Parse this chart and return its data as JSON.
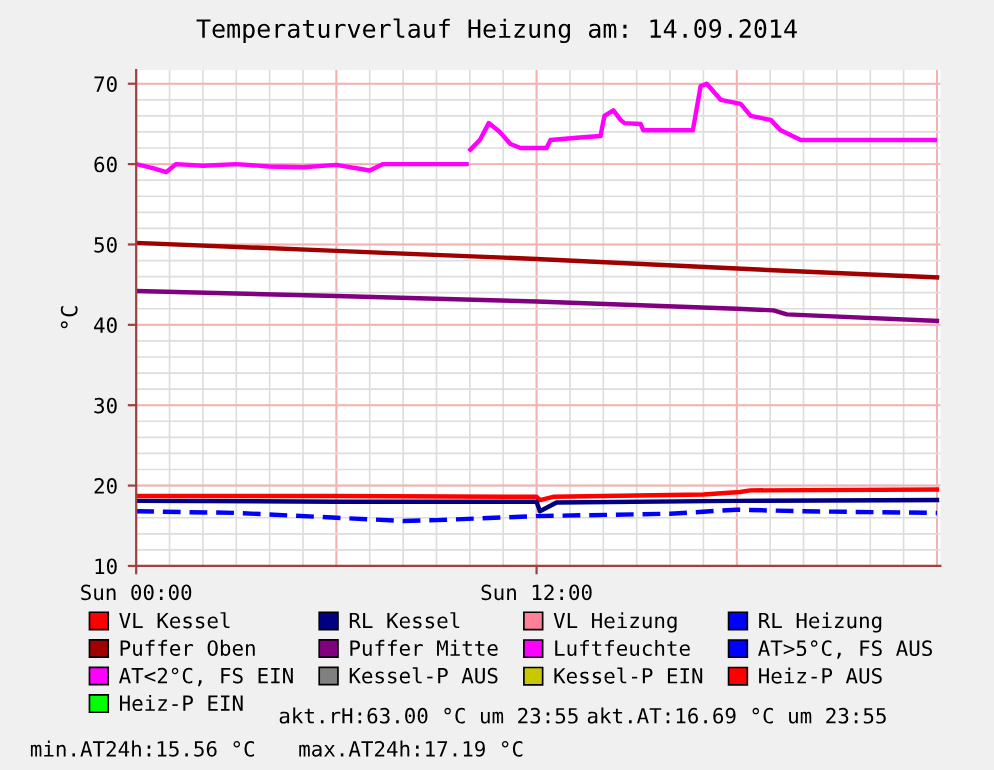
{
  "chart_data": {
    "type": "line",
    "title": "Temperaturverlauf Heizung am: 14.09.2014",
    "ylabel": "°C",
    "xlim": [
      "2014-09-14T00:00",
      "2014-09-15T00:06"
    ],
    "xticks": [
      {
        "value": "2014-09-14T00:00",
        "label": "Sun 00:00"
      },
      {
        "value": "2014-09-14T12:00",
        "label": "Sun 12:00"
      }
    ],
    "ylim": [
      10,
      71.7
    ],
    "yticks": [
      10,
      20,
      30,
      40,
      50,
      60,
      70
    ],
    "grid": true,
    "legend": "bottom",
    "line_style": "solid",
    "marker": "none",
    "series": [
      {
        "name": "VL Kessel",
        "color": "#ff0000",
        "x": [
          "2014-09-14T00:00",
          "2014-09-14T06:00",
          "2014-09-14T12:00",
          "2014-09-14T12:06",
          "2014-09-14T12:30",
          "2014-09-14T17:00",
          "2014-09-14T18:06",
          "2014-09-14T18:24",
          "2014-09-15T00:00"
        ],
        "values": [
          18.7,
          18.7,
          18.6,
          18.2,
          18.6,
          18.9,
          19.2,
          19.4,
          19.5
        ]
      },
      {
        "name": "RL Kessel",
        "color": "#000080",
        "x": [
          "2014-09-14T00:00",
          "2014-09-14T06:00",
          "2014-09-14T12:00",
          "2014-09-14T12:06",
          "2014-09-14T12:36",
          "2014-09-14T18:00",
          "2014-09-15T00:00"
        ],
        "values": [
          18.1,
          18.0,
          18.0,
          16.8,
          17.9,
          18.1,
          18.2
        ]
      },
      {
        "name": "VL Heizung",
        "color": "#ff8099"
      },
      {
        "name": "RL Heizung",
        "color": "#0000ff"
      },
      {
        "name": "Puffer Oben",
        "color": "#a00000",
        "x": [
          "2014-09-14T00:00",
          "2014-09-14T06:00",
          "2014-09-14T12:00",
          "2014-09-14T18:00",
          "2014-09-15T00:00"
        ],
        "values": [
          50.2,
          49.2,
          48.2,
          47.0,
          45.9
        ]
      },
      {
        "name": "Puffer Mitte",
        "color": "#800080",
        "x": [
          "2014-09-14T00:00",
          "2014-09-14T06:00",
          "2014-09-14T12:00",
          "2014-09-14T18:00",
          "2014-09-14T19:06",
          "2014-09-14T19:30",
          "2014-09-15T00:00"
        ],
        "values": [
          44.2,
          43.6,
          42.9,
          42.0,
          41.8,
          41.3,
          40.5
        ]
      },
      {
        "name": "Luftfeuchte",
        "color": "#ff00ff",
        "x": [
          "2014-09-14T00:00",
          "2014-09-14T00:30",
          "2014-09-14T00:54",
          "2014-09-14T01:12",
          "2014-09-14T02:00",
          "2014-09-14T03:00",
          "2014-09-14T04:00",
          "2014-09-14T05:00",
          "2014-09-14T06:00",
          "2014-09-14T07:00",
          "2014-09-14T07:24",
          "2014-09-14T08:00",
          "2014-09-14T09:54",
          "2014-09-14T09:58",
          "2014-09-14T10:01",
          "2014-09-14T10:18",
          "2014-09-14T10:34",
          "2014-09-14T10:54",
          "2014-09-14T11:13",
          "2014-09-14T11:31",
          "2014-09-14T12:18",
          "2014-09-14T12:25",
          "2014-09-14T13:18",
          "2014-09-14T13:55",
          "2014-09-14T14:02",
          "2014-09-14T14:18",
          "2014-09-14T14:31",
          "2014-09-14T14:38",
          "2014-09-14T15:07",
          "2014-09-14T15:12",
          "2014-09-14T16:41",
          "2014-09-14T16:55",
          "2014-09-14T17:06",
          "2014-09-14T17:31",
          "2014-09-14T18:07",
          "2014-09-14T18:25",
          "2014-09-14T19:01",
          "2014-09-14T19:19",
          "2014-09-14T19:55",
          "2014-09-14T23:56"
        ],
        "values": [
          60,
          59.5,
          59,
          60,
          59.8,
          60,
          59.7,
          59.6,
          59.9,
          59.2,
          60,
          60,
          60,
          null,
          61.8,
          63,
          65.1,
          64,
          62.5,
          62,
          62,
          63,
          63.3,
          63.5,
          66,
          66.7,
          65.5,
          65.1,
          65,
          64.2,
          64.2,
          69.7,
          70,
          68,
          67.5,
          66,
          65.5,
          64.2,
          63,
          63
        ]
      },
      {
        "name": "AT>5°C, FS AUS",
        "color": "#0000ff",
        "line_style": "dashed",
        "x": [
          "2014-09-14T00:00",
          "2014-09-14T03:00",
          "2014-09-14T06:00",
          "2014-09-14T08:00",
          "2014-09-14T09:00",
          "2014-09-14T12:00",
          "2014-09-14T16:00",
          "2014-09-14T18:00",
          "2014-09-14T20:00",
          "2014-09-15T00:00"
        ],
        "values": [
          16.8,
          16.6,
          16.0,
          15.6,
          15.7,
          16.2,
          16.5,
          17.0,
          16.8,
          16.6
        ]
      },
      {
        "name": "AT<2°C, FS EIN",
        "color": "#ff00ff"
      },
      {
        "name": "Kessel-P AUS",
        "color": "#808080"
      },
      {
        "name": "Kessel-P EIN",
        "color": "#c8c800"
      },
      {
        "name": "Heiz-P AUS",
        "color": "#ff0000"
      },
      {
        "name": "Heiz-P EIN",
        "color": "#00ff00"
      }
    ],
    "annotations": [
      "akt.rH:63.00 °C um 23:55",
      "akt.AT:16.69 °C um 23:55",
      "min.AT24h:15.56 °C",
      "max.AT24h:17.19 °C"
    ]
  }
}
